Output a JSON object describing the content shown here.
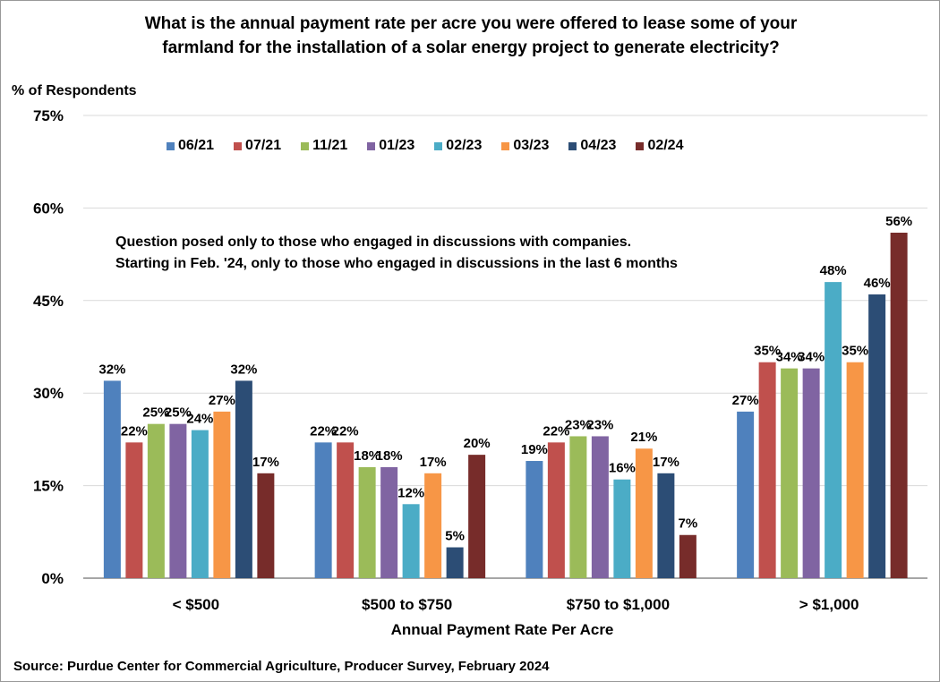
{
  "chart_data": {
    "type": "bar",
    "title": "What is the annual payment rate per acre you were offered to lease some of your farmland for the installation of a solar energy project to generate electricity?",
    "title_lines": [
      "What is the annual payment rate per acre you were offered to lease some of your",
      "farmland for the installation of a solar energy project to generate electricity?"
    ],
    "ylabel": "% of Respondents",
    "xlabel": "Annual Payment Rate Per Acre",
    "ylim": [
      0,
      75
    ],
    "yticks": [
      0,
      15,
      30,
      45,
      60,
      75
    ],
    "ytick_labels": [
      "0%",
      "15%",
      "30%",
      "45%",
      "60%",
      "75%"
    ],
    "grid": true,
    "legend_position": "top",
    "categories": [
      "< $500",
      "$500 to $750",
      "$750 to $1,000",
      "> $1,000"
    ],
    "series": [
      {
        "name": "06/21",
        "color": "#4f81bd",
        "values": [
          32,
          22,
          19,
          27
        ]
      },
      {
        "name": "07/21",
        "color": "#c0504d",
        "values": [
          22,
          22,
          22,
          35
        ]
      },
      {
        "name": "11/21",
        "color": "#9bbb59",
        "values": [
          25,
          18,
          23,
          34
        ]
      },
      {
        "name": "01/23",
        "color": "#8064a2",
        "values": [
          25,
          18,
          23,
          34
        ]
      },
      {
        "name": "02/23",
        "color": "#4bacc6",
        "values": [
          24,
          12,
          16,
          48
        ]
      },
      {
        "name": "03/23",
        "color": "#f79646",
        "values": [
          27,
          17,
          21,
          35
        ]
      },
      {
        "name": "04/23",
        "color": "#2c4d75",
        "values": [
          32,
          5,
          17,
          46
        ]
      },
      {
        "name": "02/24",
        "color": "#772c2a",
        "values": [
          17,
          20,
          7,
          56
        ]
      }
    ],
    "annotation": [
      "Question posed only to those who engaged  in discussions with companies.",
      "Starting in Feb. '24, only to those who engaged in discussions  in the last 6 months"
    ],
    "source": "Source: Purdue Center for Commercial Agriculture, Producer Survey, February 2024"
  }
}
